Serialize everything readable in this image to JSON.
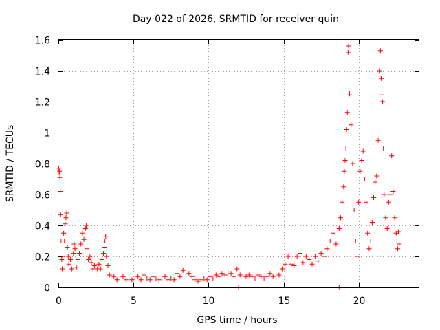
{
  "chart_data": {
    "type": "scatter",
    "title": "Day 022 of 2026, SRMTID for receiver quin",
    "xlabel": "GPS time / hours",
    "ylabel": "SRMTID / TECUs",
    "xlim": [
      0,
      24
    ],
    "ylim": [
      0,
      1.6
    ],
    "grid": true,
    "marker": "plus",
    "marker_color": "#ff0000",
    "x_ticks": [
      {
        "value": 0,
        "label": "0"
      },
      {
        "value": 5,
        "label": "5"
      },
      {
        "value": 10,
        "label": "10"
      },
      {
        "value": 15,
        "label": "15"
      },
      {
        "value": 20,
        "label": "20"
      }
    ],
    "y_ticks": [
      {
        "value": 0,
        "label": "0"
      },
      {
        "value": 0.2,
        "label": "0.2"
      },
      {
        "value": 0.4,
        "label": "0.4"
      },
      {
        "value": 0.6,
        "label": "0.6"
      },
      {
        "value": 0.8,
        "label": "0.8"
      },
      {
        "value": 1.0,
        "label": "1"
      },
      {
        "value": 1.2,
        "label": "1.2"
      },
      {
        "value": 1.4,
        "label": "1.4"
      },
      {
        "value": 1.6,
        "label": "1.6"
      }
    ],
    "series": [
      {
        "name": "SRMTID",
        "points": [
          [
            0.02,
            0.77
          ],
          [
            0.05,
            0.74
          ],
          [
            0.08,
            0.75
          ],
          [
            0.1,
            0.71
          ],
          [
            0.12,
            0.62
          ],
          [
            0.15,
            0.47
          ],
          [
            0.18,
            0.3
          ],
          [
            0.22,
            0.18
          ],
          [
            0.25,
            0.12
          ],
          [
            0.3,
            0.2
          ],
          [
            0.35,
            0.35
          ],
          [
            0.4,
            0.3
          ],
          [
            0.45,
            0.41
          ],
          [
            0.5,
            0.45
          ],
          [
            0.55,
            0.48
          ],
          [
            0.6,
            0.26
          ],
          [
            0.65,
            0.2
          ],
          [
            0.7,
            0.15
          ],
          [
            0.8,
            0.18
          ],
          [
            0.9,
            0.12
          ],
          [
            1.0,
            0.22
          ],
          [
            1.05,
            0.28
          ],
          [
            1.1,
            0.25
          ],
          [
            1.2,
            0.13
          ],
          [
            1.3,
            0.18
          ],
          [
            1.4,
            0.22
          ],
          [
            1.5,
            0.28
          ],
          [
            1.6,
            0.35
          ],
          [
            1.7,
            0.31
          ],
          [
            1.8,
            0.38
          ],
          [
            1.85,
            0.4
          ],
          [
            1.9,
            0.25
          ],
          [
            2.0,
            0.18
          ],
          [
            2.1,
            0.2
          ],
          [
            2.2,
            0.16
          ],
          [
            2.3,
            0.12
          ],
          [
            2.4,
            0.14
          ],
          [
            2.5,
            0.1
          ],
          [
            2.6,
            0.12
          ],
          [
            2.7,
            0.15
          ],
          [
            2.8,
            0.12
          ],
          [
            2.9,
            0.18
          ],
          [
            3.0,
            0.22
          ],
          [
            3.05,
            0.26
          ],
          [
            3.1,
            0.3
          ],
          [
            3.15,
            0.33
          ],
          [
            3.2,
            0.2
          ],
          [
            3.3,
            0.14
          ],
          [
            3.4,
            0.08
          ],
          [
            3.5,
            0.06
          ],
          [
            3.7,
            0.07
          ],
          [
            3.9,
            0.05
          ],
          [
            4.1,
            0.06
          ],
          [
            4.3,
            0.07
          ],
          [
            4.5,
            0.05
          ],
          [
            4.7,
            0.06
          ],
          [
            4.9,
            0.05
          ],
          [
            5.1,
            0.06
          ],
          [
            5.3,
            0.07
          ],
          [
            5.5,
            0.05
          ],
          [
            5.7,
            0.08
          ],
          [
            5.9,
            0.06
          ],
          [
            6.1,
            0.05
          ],
          [
            6.3,
            0.07
          ],
          [
            6.5,
            0.06
          ],
          [
            6.7,
            0.05
          ],
          [
            6.9,
            0.06
          ],
          [
            7.1,
            0.07
          ],
          [
            7.3,
            0.05
          ],
          [
            7.5,
            0.06
          ],
          [
            7.7,
            0.05
          ],
          [
            7.9,
            0.09
          ],
          [
            8.1,
            0.07
          ],
          [
            8.3,
            0.11
          ],
          [
            8.5,
            0.1
          ],
          [
            8.7,
            0.09
          ],
          [
            8.9,
            0.07
          ],
          [
            9.1,
            0.05
          ],
          [
            9.3,
            0.04
          ],
          [
            9.5,
            0.05
          ],
          [
            9.7,
            0.06
          ],
          [
            9.9,
            0.05
          ],
          [
            10.1,
            0.07
          ],
          [
            10.3,
            0.06
          ],
          [
            10.5,
            0.08
          ],
          [
            10.7,
            0.07
          ],
          [
            10.9,
            0.09
          ],
          [
            11.1,
            0.08
          ],
          [
            11.3,
            0.1
          ],
          [
            11.5,
            0.09
          ],
          [
            11.7,
            0.07
          ],
          [
            11.9,
            0.12
          ],
          [
            12.1,
            0.08
          ],
          [
            12.3,
            0.06
          ],
          [
            12.5,
            0.07
          ],
          [
            12.7,
            0.08
          ],
          [
            12.9,
            0.07
          ],
          [
            13.1,
            0.06
          ],
          [
            13.3,
            0.08
          ],
          [
            13.5,
            0.07
          ],
          [
            13.7,
            0.06
          ],
          [
            13.9,
            0.07
          ],
          [
            14.1,
            0.09
          ],
          [
            14.3,
            0.07
          ],
          [
            14.5,
            0.06
          ],
          [
            14.7,
            0.08
          ],
          [
            14.9,
            0.12
          ],
          [
            15.1,
            0.15
          ],
          [
            15.3,
            0.2
          ],
          [
            15.5,
            0.15
          ],
          [
            15.7,
            0.14
          ],
          [
            15.9,
            0.2
          ],
          [
            16.1,
            0.22
          ],
          [
            16.3,
            0.16
          ],
          [
            16.5,
            0.2
          ],
          [
            16.7,
            0.18
          ],
          [
            16.9,
            0.15
          ],
          [
            17.1,
            0.2
          ],
          [
            17.3,
            0.17
          ],
          [
            17.5,
            0.22
          ],
          [
            17.7,
            0.2
          ],
          [
            17.9,
            0.25
          ],
          [
            18.1,
            0.3
          ],
          [
            18.3,
            0.35
          ],
          [
            18.5,
            0.28
          ],
          [
            18.7,
            0.38
          ],
          [
            18.8,
            0.45
          ],
          [
            18.9,
            0.55
          ],
          [
            19.0,
            0.65
          ],
          [
            19.05,
            0.75
          ],
          [
            19.1,
            0.82
          ],
          [
            19.15,
            0.9
          ],
          [
            19.2,
            1.02
          ],
          [
            19.25,
            1.13
          ],
          [
            19.3,
            1.52
          ],
          [
            19.33,
            1.56
          ],
          [
            19.35,
            1.38
          ],
          [
            19.4,
            1.25
          ],
          [
            19.5,
            1.05
          ],
          [
            19.6,
            0.8
          ],
          [
            19.7,
            0.5
          ],
          [
            19.8,
            0.3
          ],
          [
            19.9,
            0.2
          ],
          [
            20.0,
            0.55
          ],
          [
            20.1,
            0.75
          ],
          [
            20.2,
            0.82
          ],
          [
            20.3,
            0.88
          ],
          [
            20.4,
            0.7
          ],
          [
            20.5,
            0.55
          ],
          [
            20.6,
            0.35
          ],
          [
            20.7,
            0.25
          ],
          [
            20.8,
            0.3
          ],
          [
            20.9,
            0.42
          ],
          [
            21.0,
            0.58
          ],
          [
            21.1,
            0.68
          ],
          [
            21.2,
            0.72
          ],
          [
            21.3,
            0.95
          ],
          [
            21.4,
            1.4
          ],
          [
            21.45,
            1.53
          ],
          [
            21.5,
            1.35
          ],
          [
            21.55,
            1.25
          ],
          [
            21.6,
            1.2
          ],
          [
            21.65,
            0.9
          ],
          [
            21.7,
            0.6
          ],
          [
            21.8,
            0.45
          ],
          [
            21.9,
            0.38
          ],
          [
            22.0,
            0.55
          ],
          [
            22.1,
            0.6
          ],
          [
            22.2,
            0.85
          ],
          [
            22.3,
            0.62
          ],
          [
            22.4,
            0.45
          ],
          [
            22.5,
            0.35
          ],
          [
            22.55,
            0.3
          ],
          [
            22.6,
            0.25
          ],
          [
            22.65,
            0.36
          ],
          [
            22.7,
            0.28
          ],
          [
            18.7,
            0.0
          ],
          [
            12.0,
            0.0
          ]
        ]
      }
    ]
  }
}
